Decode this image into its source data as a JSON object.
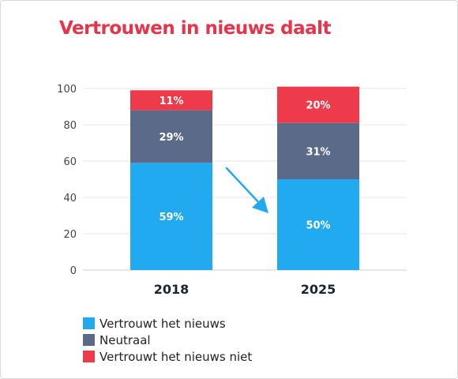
{
  "title": "Vertrouwen in nieuws daalt",
  "colors": {
    "title": "#e8334a",
    "trust": "#22aaf0",
    "neutral": "#5a6a88",
    "distrust": "#ee3b4c",
    "arrow": "#22aaf0"
  },
  "chart_data": {
    "type": "bar",
    "stacked": true,
    "categories": [
      "2018",
      "2025"
    ],
    "series": [
      {
        "name": "Vertrouwt het nieuws",
        "color": "#22aaf0",
        "values": [
          59,
          50
        ],
        "labels": [
          "59%",
          "50%"
        ]
      },
      {
        "name": "Neutraal",
        "color": "#5a6a88",
        "values": [
          29,
          31
        ],
        "labels": [
          "29%",
          "31%"
        ]
      },
      {
        "name": "Vertrouwt het nieuws niet",
        "color": "#ee3b4c",
        "values": [
          11,
          20
        ],
        "labels": [
          "11%",
          "20%"
        ]
      }
    ],
    "yticks": [
      "0",
      "20",
      "40",
      "60",
      "80",
      "100"
    ],
    "ylim": [
      0,
      100
    ],
    "grid": true,
    "legend": "bottom-left",
    "annotation": "downward arrow between bars"
  }
}
